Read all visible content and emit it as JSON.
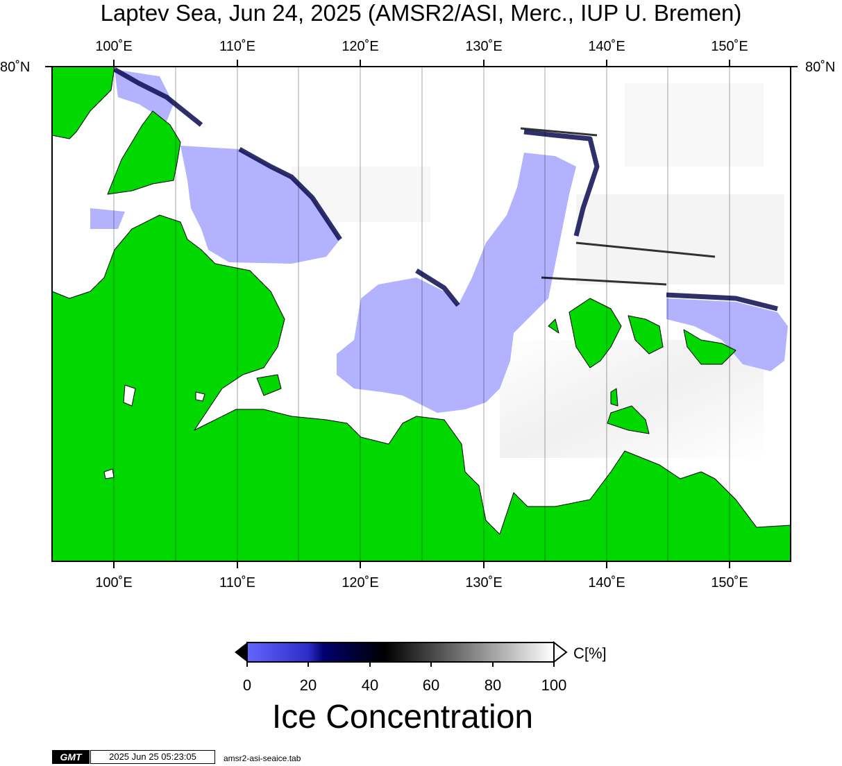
{
  "title": "Laptev Sea, Jun 24, 2025 (AMSR2/ASI, Merc., IUP U. Bremen)",
  "axes": {
    "lon_ticks": [
      "100˚E",
      "110˚E",
      "120˚E",
      "130˚E",
      "140˚E",
      "150˚E"
    ],
    "lon_values": [
      100,
      110,
      120,
      130,
      140,
      150
    ],
    "lat_label": "80˚N",
    "lon_range": [
      95,
      155
    ],
    "lat_top": 80,
    "gridlines": true
  },
  "colors": {
    "land": "#00d800",
    "open_water": "#b2b2ff",
    "ice": "#ffffff"
  },
  "colorbar": {
    "title": "Ice Concentration",
    "unit": "C[%]",
    "ticks": [
      "0",
      "20",
      "40",
      "60",
      "80",
      "100"
    ],
    "tick_values": [
      0,
      20,
      40,
      60,
      80,
      100
    ],
    "range": [
      0,
      100
    ],
    "stops": [
      {
        "value": 0,
        "color": "#6464ff"
      },
      {
        "value": 20,
        "color": "#2c2cc8"
      },
      {
        "value": 25,
        "color": "#00006e"
      },
      {
        "value": 45,
        "color": "#000000"
      },
      {
        "value": 100,
        "color": "#ffffff"
      }
    ]
  },
  "footer": {
    "logo": "GMT",
    "timestamp": "2025 Jun 25 05:23:05",
    "command": "amsr2-asi-seaice.tab"
  }
}
